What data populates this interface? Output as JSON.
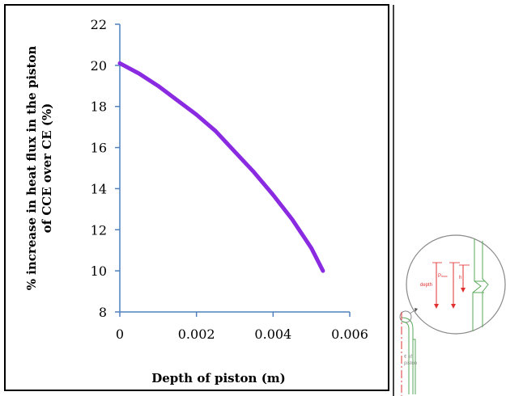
{
  "chart_data": {
    "type": "line",
    "xlabel": "Depth of piston (m)",
    "ylabel": [
      "% increase in heat flux in the piston",
      "of CCE over CE  (%)"
    ],
    "xlim": [
      0,
      0.006
    ],
    "ylim": [
      8,
      22
    ],
    "x_ticks": [
      "0",
      "0.002",
      "0.004",
      "0.006"
    ],
    "y_ticks": [
      "8",
      "10",
      "12",
      "14",
      "16",
      "18",
      "20",
      "22"
    ],
    "grid": false,
    "series": [
      {
        "color": "#8a2be2",
        "x": [
          0,
          0.0005,
          0.001,
          0.0015,
          0.002,
          0.0025,
          0.003,
          0.0035,
          0.004,
          0.0045,
          0.005,
          0.0053
        ],
        "y": [
          20.1,
          19.6,
          19.0,
          18.3,
          17.6,
          16.8,
          15.8,
          14.8,
          13.7,
          12.5,
          11.1,
          10.0
        ]
      }
    ]
  },
  "inset": {
    "labels": {
      "depth": "depth",
      "pmax": "P",
      "pmax_sub": "max",
      "h": "h",
      "centerline_1": "¢ of",
      "centerline_2": "piston"
    },
    "colors": {
      "outline": "#5aa85a",
      "arrow": "#e03030",
      "text": "#e03030"
    }
  }
}
